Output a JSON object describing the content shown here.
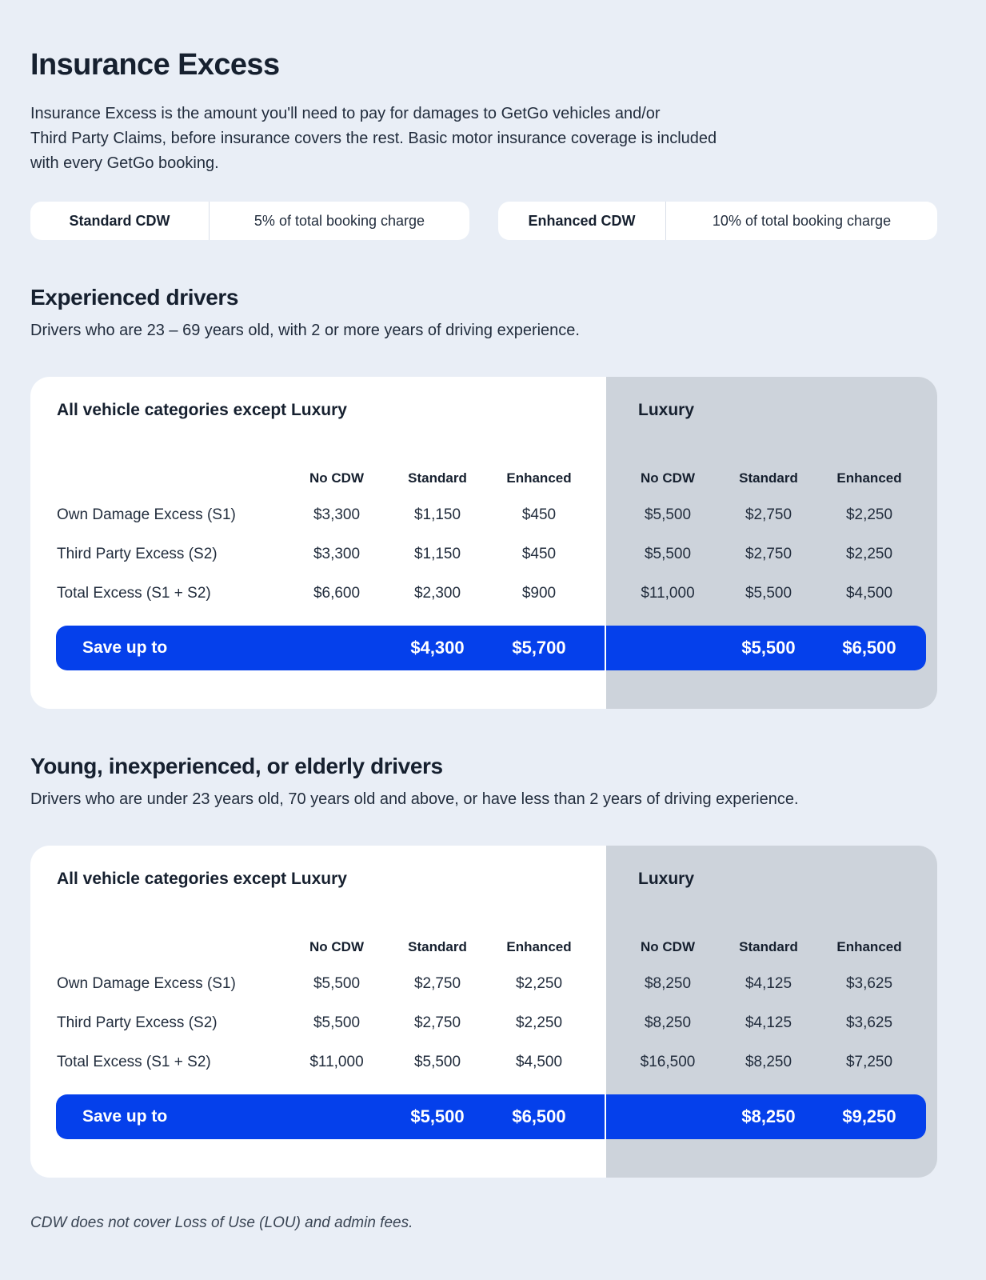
{
  "colors": {
    "background": "#E9EEF6",
    "card": "#FFFFFF",
    "luxury_panel": "#CDD3DB",
    "accent_blue": "#0540EB",
    "heading_ink": "#16202F"
  },
  "header": {
    "title": "Insurance Excess",
    "description_lines": [
      "Insurance Excess is the amount you'll need to pay for damages to GetGo vehicles and/or",
      "Third Party Claims, before insurance covers the rest. Basic motor insurance coverage is included",
      "with every GetGo booking."
    ]
  },
  "cdw_pills": [
    {
      "label": "Standard CDW",
      "value": "5% of total booking charge"
    },
    {
      "label": "Enhanced CDW",
      "value": "10% of total booking charge"
    }
  ],
  "sections": [
    {
      "heading": "Experienced drivers",
      "subheading": "Drivers who are 23 – 69 years old, with 2 or more years of driving experience.",
      "table": {
        "group_headers": [
          "All vehicle categories except Luxury",
          "Luxury"
        ],
        "column_headers": [
          "No CDW",
          "Standard",
          "Enhanced",
          "No CDW",
          "Standard",
          "Enhanced"
        ],
        "rows": [
          {
            "label": "Own Damage Excess (S1)",
            "values": [
              "$3,300",
              "$1,150",
              "$450",
              "$5,500",
              "$2,750",
              "$2,250"
            ]
          },
          {
            "label": "Third Party Excess (S2)",
            "values": [
              "$3,300",
              "$1,150",
              "$450",
              "$5,500",
              "$2,750",
              "$2,250"
            ]
          },
          {
            "label": "Total Excess (S1 + S2)",
            "values": [
              "$6,600",
              "$2,300",
              "$900",
              "$11,000",
              "$5,500",
              "$4,500"
            ]
          }
        ],
        "save": {
          "label": "Save up to",
          "values": [
            "$4,300",
            "$5,700",
            "$5,500",
            "$6,500"
          ]
        }
      }
    },
    {
      "heading": "Young, inexperienced, or elderly drivers",
      "subheading": "Drivers who are under 23 years old, 70 years old and above, or have less than 2 years of driving experience.",
      "table": {
        "group_headers": [
          "All vehicle categories except Luxury",
          "Luxury"
        ],
        "column_headers": [
          "No CDW",
          "Standard",
          "Enhanced",
          "No CDW",
          "Standard",
          "Enhanced"
        ],
        "rows": [
          {
            "label": "Own Damage Excess (S1)",
            "values": [
              "$5,500",
              "$2,750",
              "$2,250",
              "$8,250",
              "$4,125",
              "$3,625"
            ]
          },
          {
            "label": "Third Party Excess (S2)",
            "values": [
              "$5,500",
              "$2,750",
              "$2,250",
              "$8,250",
              "$4,125",
              "$3,625"
            ]
          },
          {
            "label": "Total Excess (S1 + S2)",
            "values": [
              "$11,000",
              "$5,500",
              "$4,500",
              "$16,500",
              "$8,250",
              "$7,250"
            ]
          }
        ],
        "save": {
          "label": "Save up to",
          "values": [
            "$5,500",
            "$6,500",
            "$8,250",
            "$9,250"
          ]
        }
      }
    }
  ],
  "footnote": "CDW does not cover Loss of Use (LOU) and admin fees."
}
